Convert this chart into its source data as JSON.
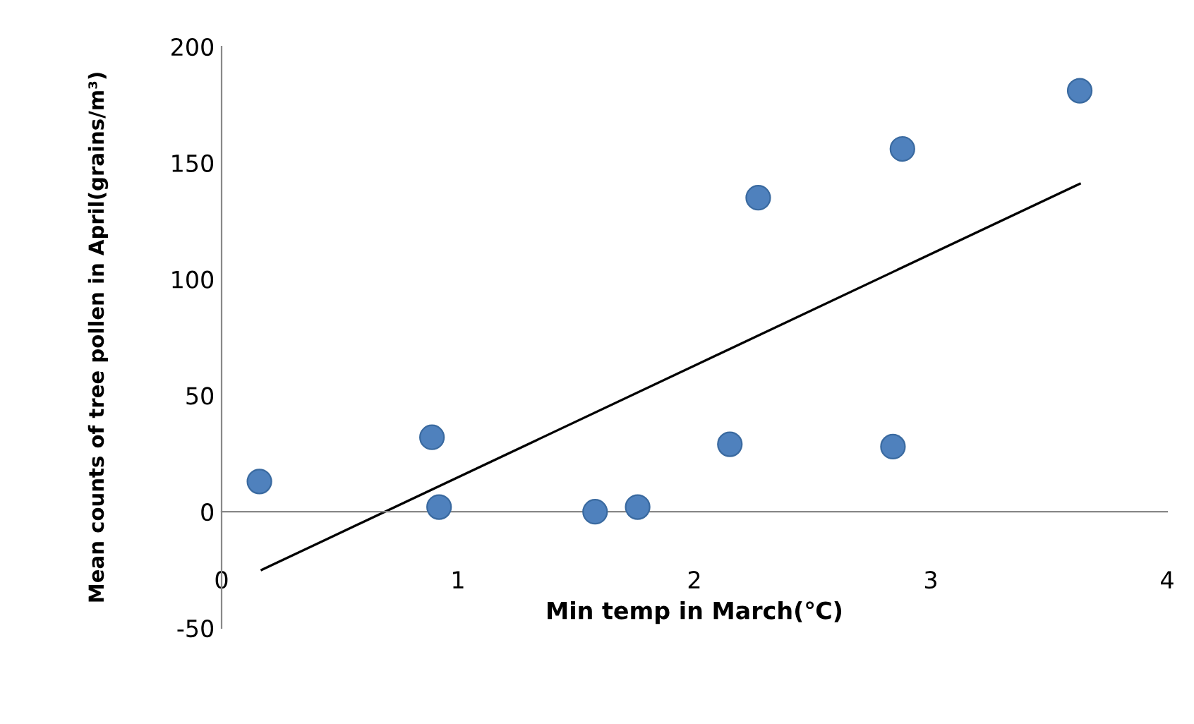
{
  "chart_data": {
    "type": "scatter",
    "xlabel": "Min temp in March(℃)",
    "ylabel": "Mean counts of tree pollen in April(grains/m³)",
    "xlim": [
      0,
      4
    ],
    "ylim": [
      -50,
      200
    ],
    "xticks": [
      0,
      1,
      2,
      3,
      4
    ],
    "yticks": [
      -50,
      0,
      50,
      100,
      150,
      200
    ],
    "grid": false,
    "marker": "circle",
    "series": [
      {
        "color": "#4f81bd",
        "x": [
          0.16,
          0.89,
          0.92,
          1.58,
          1.76,
          2.15,
          2.27,
          2.84,
          2.88,
          3.63
        ],
        "values": [
          13,
          32,
          2,
          0,
          2,
          29,
          135,
          28,
          156,
          181
        ]
      },
      {
        "type": "line",
        "color": "#000000",
        "x": [
          0.17,
          3.63
        ],
        "values": [
          -25,
          141
        ],
        "marker": "none",
        "line_style": "solid"
      }
    ]
  }
}
